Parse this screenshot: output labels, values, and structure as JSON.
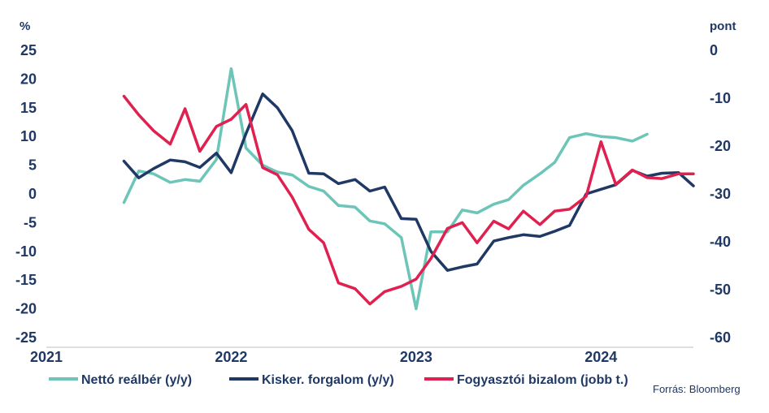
{
  "chart_data": {
    "type": "line",
    "left_axis": {
      "unit": "%",
      "range": [
        -25,
        25
      ],
      "ticks": [
        25,
        20,
        15,
        10,
        5,
        0,
        -5,
        -10,
        -15,
        -20,
        -25
      ],
      "tick_labels": [
        "25",
        "20",
        "15",
        "10",
        "5",
        "0",
        "-5",
        "-10",
        "-15",
        "-20",
        "-25"
      ]
    },
    "right_axis": {
      "unit": "pont",
      "range": [
        -60,
        0
      ],
      "ticks": [
        0,
        -10,
        -20,
        -30,
        -40,
        -50,
        -60
      ],
      "tick_labels": [
        "0",
        "-10",
        "-20",
        "-30",
        "-40",
        "-50",
        "-60"
      ]
    },
    "x_axis": {
      "range": [
        2021.0,
        2024.5
      ],
      "ticks": [
        2021,
        2022,
        2023,
        2024
      ],
      "tick_labels": [
        "2021",
        "2022",
        "2023",
        "2024"
      ]
    },
    "grid": false,
    "legend_position": "bottom",
    "series": [
      {
        "name": "Nettó reálbér (y/y)",
        "axis": "left",
        "color": "#6cc5b8",
        "x": [
          2021.42,
          2021.5,
          2021.58,
          2021.67,
          2021.75,
          2021.83,
          2021.92,
          2022.0,
          2022.08,
          2022.17,
          2022.25,
          2022.33,
          2022.42,
          2022.5,
          2022.58,
          2022.67,
          2022.75,
          2022.83,
          2022.92,
          2023.0,
          2023.08,
          2023.17,
          2023.25,
          2023.33,
          2023.42,
          2023.5,
          2023.58,
          2023.67,
          2023.75,
          2023.83,
          2023.92,
          2024.0,
          2024.08,
          2024.17,
          2024.25,
          2024.33
        ],
        "values": [
          -1.5,
          4,
          3.5,
          2,
          2.5,
          2.2,
          6,
          21.8,
          8,
          5,
          3.8,
          3.3,
          1.3,
          0.5,
          -2,
          -2.3,
          -4.7,
          -5.2,
          -7.6,
          -20,
          -6.6,
          -6.6,
          -2.8,
          -3.3,
          -1.8,
          -1,
          1.5,
          3.5,
          5.5,
          9.8,
          10.5,
          10,
          9.8,
          9.2,
          10.4,
          null
        ]
      },
      {
        "name": "Kisker. forgalom (y/y)",
        "axis": "left",
        "color": "#1f3864",
        "x": [
          2021.42,
          2021.5,
          2021.58,
          2021.67,
          2021.75,
          2021.83,
          2021.92,
          2022.0,
          2022.08,
          2022.17,
          2022.25,
          2022.33,
          2022.42,
          2022.5,
          2022.58,
          2022.67,
          2022.75,
          2022.83,
          2022.92,
          2023.0,
          2023.08,
          2023.17,
          2023.25,
          2023.33,
          2023.42,
          2023.5,
          2023.58,
          2023.67,
          2023.75,
          2023.83,
          2023.92,
          2024.0,
          2024.08,
          2024.17,
          2024.25,
          2024.33,
          2024.42,
          2024.5
        ],
        "values": [
          5.7,
          2.8,
          4.4,
          5.9,
          5.6,
          4.6,
          7.1,
          3.7,
          10.5,
          17.4,
          15,
          11,
          3.6,
          3.5,
          1.8,
          2.5,
          0.5,
          1.2,
          -4.3,
          -4.4,
          -10,
          -13.3,
          -12.7,
          -12.2,
          -8.2,
          -7.6,
          -7.1,
          -7.4,
          -6.5,
          -5.5,
          0,
          0.8,
          1.6,
          4.1,
          3.1,
          3.6,
          3.7,
          1.4
        ]
      },
      {
        "name": "Fogyasztói bizalom (jobb t.)",
        "axis": "right",
        "color": "#e0204f",
        "x": [
          2021.42,
          2021.5,
          2021.58,
          2021.67,
          2021.75,
          2021.83,
          2021.92,
          2022.0,
          2022.08,
          2022.17,
          2022.25,
          2022.33,
          2022.42,
          2022.5,
          2022.58,
          2022.67,
          2022.75,
          2022.83,
          2022.92,
          2023.0,
          2023.08,
          2023.17,
          2023.25,
          2023.33,
          2023.42,
          2023.5,
          2023.58,
          2023.67,
          2023.75,
          2023.83,
          2023.92,
          2024.0,
          2024.08,
          2024.17,
          2024.25,
          2024.33,
          2024.42,
          2024.5
        ],
        "values": [
          -9.6,
          -13.5,
          -16.8,
          -19.6,
          -12.2,
          -21.1,
          -15.9,
          -14.4,
          -11.3,
          -24.5,
          -26,
          -30.7,
          -37.4,
          -40.2,
          -48.6,
          -49.8,
          -53,
          -50.4,
          -49.3,
          -47.8,
          -43.5,
          -37.2,
          -36,
          -40.2,
          -35.7,
          -37.3,
          -33.6,
          -36.4,
          -33.6,
          -33.2,
          -30.5,
          -19.1,
          -28,
          -25,
          -26.6,
          -26.8,
          -25.8,
          -25.8
        ]
      }
    ],
    "source": "Forrás: Bloomberg"
  }
}
